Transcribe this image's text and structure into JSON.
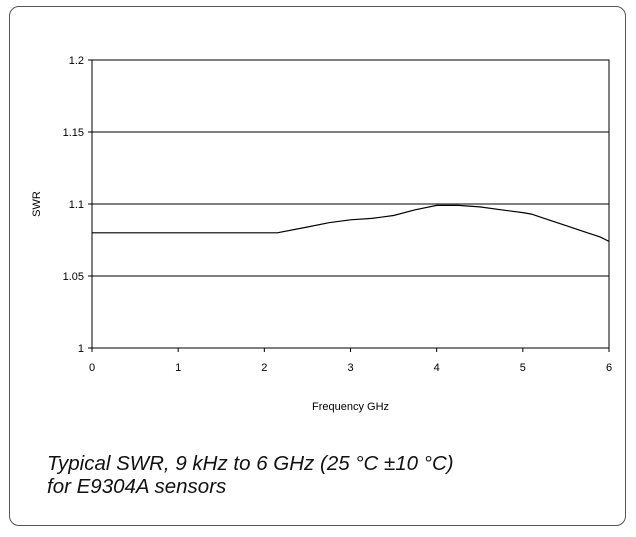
{
  "chart_data": {
    "type": "line",
    "title": "",
    "xlabel": "Frequency GHz",
    "ylabel": "SWR",
    "xlim": [
      0,
      6
    ],
    "ylim": [
      1,
      1.2
    ],
    "x_ticks": [
      0,
      1,
      2,
      3,
      4,
      5,
      6
    ],
    "x_tick_labels": [
      "0",
      "1",
      "2",
      "3",
      "4",
      "5",
      "6"
    ],
    "y_ticks": [
      1,
      1.05,
      1.1,
      1.15,
      1.2
    ],
    "y_tick_labels": [
      "1",
      "1.05",
      "1.1",
      "1.15",
      "1.2"
    ],
    "grid": "horizontal",
    "series": [
      {
        "x": [
          0,
          0.5,
          1.0,
          1.5,
          2.0,
          2.15,
          2.5,
          2.75,
          3.0,
          3.25,
          3.5,
          3.75,
          4.0,
          4.25,
          4.5,
          4.75,
          5.0,
          5.1,
          5.25,
          5.5,
          5.75,
          5.9,
          6.0
        ],
        "values": [
          1.08,
          1.08,
          1.08,
          1.08,
          1.08,
          1.08,
          1.084,
          1.087,
          1.089,
          1.09,
          1.092,
          1.096,
          1.099,
          1.099,
          1.098,
          1.096,
          1.094,
          1.093,
          1.09,
          1.085,
          1.08,
          1.077,
          1.074
        ],
        "color": "#000000"
      }
    ]
  },
  "caption": {
    "line1": "Typical SWR, 9 kHz to 6 GHz (25 °C ±10 °C)",
    "line2": "for E9304A sensors"
  }
}
